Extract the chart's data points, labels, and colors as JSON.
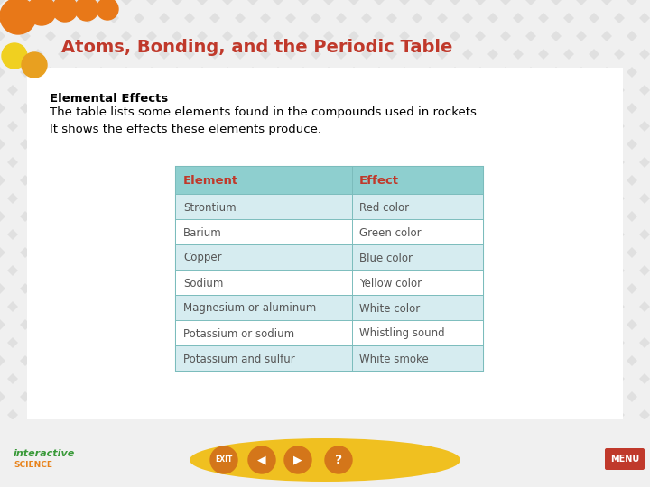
{
  "title": "Atoms, Bonding, and the Periodic Table",
  "title_color": "#c0392b",
  "title_fontsize": 14,
  "subtitle_bold": "Elemental Effects",
  "subtitle_text": "The table lists some elements found in the compounds used in rockets.\nIt shows the effects these elements produce.",
  "background_color": "#f0f0f0",
  "header_row": [
    "Element",
    "Effect"
  ],
  "header_bg": "#8ecfcf",
  "header_color": "#c0392b",
  "table_data": [
    [
      "Strontium",
      "Red color"
    ],
    [
      "Barium",
      "Green color"
    ],
    [
      "Copper",
      "Blue color"
    ],
    [
      "Sodium",
      "Yellow color"
    ],
    [
      "Magnesium or aluminum",
      "White color"
    ],
    [
      "Potassium or sodium",
      "Whistling sound"
    ],
    [
      "Potassium and sulfur",
      "White smoke"
    ]
  ],
  "row_bg_odd": "#d6ecf0",
  "row_bg_even": "#ffffff",
  "table_border_color": "#7bbcbc",
  "cell_text_color": "#555555",
  "footer_yellow": "#f0c020",
  "footer_orange": "#d4761a",
  "menu_color": "#c0392b",
  "interactive_green": "#3a9a3a",
  "interactive_orange": "#e8821a",
  "circle_specs": [
    [
      16,
      62,
      14,
      "#f0d020"
    ],
    [
      38,
      72,
      14,
      "#e8a020"
    ],
    [
      20,
      18,
      20,
      "#e87818"
    ],
    [
      46,
      12,
      16,
      "#e87818"
    ],
    [
      72,
      10,
      14,
      "#e87818"
    ],
    [
      96,
      10,
      13,
      "#e87818"
    ],
    [
      119,
      10,
      12,
      "#e87818"
    ]
  ]
}
